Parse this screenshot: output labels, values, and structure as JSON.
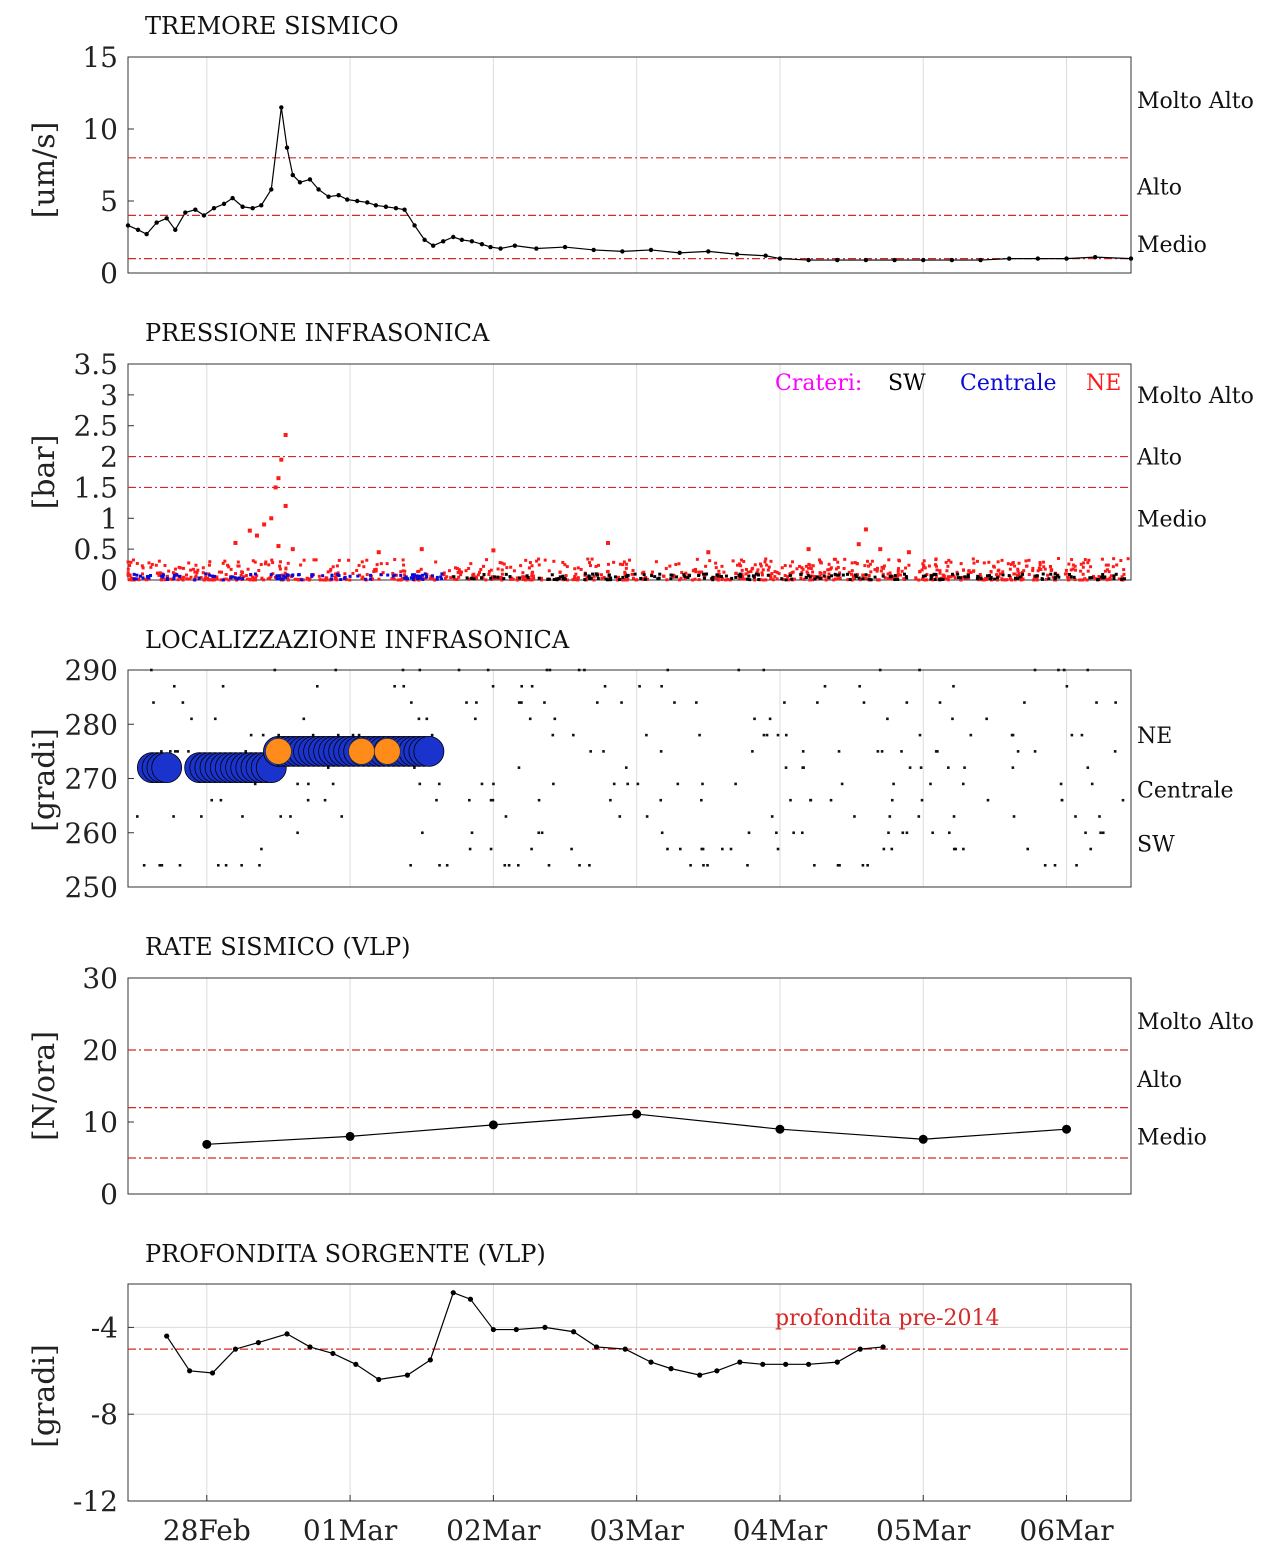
{
  "x_ticks": [
    "28Feb",
    "01Mar",
    "02Mar",
    "03Mar",
    "04Mar",
    "05Mar",
    "06Mar"
  ],
  "colors": {
    "threshold": "#d62828",
    "sw": "#000000",
    "centrale": "#0b0bd6",
    "ne": "#ff1a1a",
    "legend_label": "#ff00ff",
    "hit_orange": "#ff8c1a",
    "hit_blue": "#1a33cc"
  },
  "chart_data": [
    {
      "id": "tremore",
      "type": "line",
      "title": "TREMORE SISMICO",
      "ylabel": "[um/s]",
      "ylim": [
        0,
        15
      ],
      "yticks": [
        "0",
        "5",
        "10",
        "15"
      ],
      "x_unit": "days since 27Feb 00:00 (28Feb = 1)",
      "xlim": [
        0.45,
        7.45
      ],
      "levels": [
        {
          "label": "Molto Alto",
          "y": 12
        },
        {
          "label": "Alto",
          "y": 6
        },
        {
          "label": "Medio",
          "y": 2
        }
      ],
      "thresholds": [
        8,
        4,
        1
      ],
      "x": [
        0.45,
        0.52,
        0.58,
        0.65,
        0.72,
        0.78,
        0.85,
        0.92,
        0.98,
        1.05,
        1.12,
        1.18,
        1.25,
        1.32,
        1.38,
        1.45,
        1.52,
        1.56,
        1.6,
        1.65,
        1.72,
        1.78,
        1.85,
        1.92,
        1.98,
        2.05,
        2.12,
        2.18,
        2.25,
        2.32,
        2.38,
        2.45,
        2.52,
        2.58,
        2.65,
        2.72,
        2.78,
        2.85,
        2.92,
        2.98,
        3.05,
        3.15,
        3.3,
        3.5,
        3.7,
        3.9,
        4.1,
        4.3,
        4.5,
        4.7,
        4.9,
        5.0,
        5.2,
        5.4,
        5.6,
        5.8,
        6.0,
        6.2,
        6.4,
        6.6,
        6.8,
        7.0,
        7.2,
        7.45
      ],
      "values": [
        3.3,
        3.0,
        2.7,
        3.5,
        3.8,
        3.0,
        4.2,
        4.4,
        4.0,
        4.5,
        4.8,
        5.2,
        4.6,
        4.5,
        4.7,
        5.8,
        11.5,
        8.7,
        6.8,
        6.3,
        6.5,
        5.8,
        5.3,
        5.4,
        5.1,
        5.0,
        4.9,
        4.7,
        4.6,
        4.5,
        4.4,
        3.3,
        2.3,
        1.9,
        2.2,
        2.5,
        2.3,
        2.2,
        2.0,
        1.8,
        1.7,
        1.9,
        1.7,
        1.8,
        1.6,
        1.5,
        1.6,
        1.4,
        1.5,
        1.3,
        1.2,
        1.0,
        0.9,
        0.9,
        0.9,
        0.9,
        0.9,
        0.9,
        0.9,
        1.0,
        1.0,
        1.0,
        1.1,
        1.0
      ]
    },
    {
      "id": "pressione",
      "type": "scatter",
      "title": "PRESSIONE INFRASONICA",
      "ylabel": "[bar]",
      "ylim": [
        0,
        3.5
      ],
      "yticks": [
        "0",
        "0.5",
        "1",
        "1.5",
        "2",
        "2.5",
        "3",
        "3.5"
      ],
      "levels": [
        {
          "label": "Molto Alto",
          "y": 3.0
        },
        {
          "label": "Alto",
          "y": 2.0
        },
        {
          "label": "Medio",
          "y": 1.0
        }
      ],
      "thresholds": [
        2.0,
        1.5
      ],
      "legend": {
        "title": "Crateri:",
        "sw": "SW",
        "centrale": "Centrale",
        "ne": "NE",
        "placement": "top-right"
      },
      "series": [
        {
          "name": "NE",
          "points": [
            [
              1.55,
              2.35
            ],
            [
              1.52,
              1.95
            ],
            [
              1.5,
              1.65
            ],
            [
              1.48,
              1.5
            ],
            [
              1.55,
              1.2
            ],
            [
              1.45,
              1.0
            ],
            [
              1.4,
              0.9
            ],
            [
              1.3,
              0.8
            ],
            [
              1.35,
              0.72
            ],
            [
              1.5,
              0.55
            ],
            [
              1.2,
              0.6
            ],
            [
              1.6,
              0.5
            ],
            [
              2.2,
              0.45
            ],
            [
              2.5,
              0.5
            ],
            [
              3.0,
              0.48
            ],
            [
              3.8,
              0.6
            ],
            [
              4.5,
              0.45
            ],
            [
              5.2,
              0.5
            ],
            [
              5.55,
              0.58
            ],
            [
              5.6,
              0.82
            ],
            [
              5.7,
              0.5
            ],
            [
              5.9,
              0.45
            ]
          ]
        }
      ],
      "noise_band": {
        "ne_max": 0.35,
        "sw_centrale_max": 0.1
      }
    },
    {
      "id": "localizzazione",
      "type": "scatter",
      "title": "LOCALIZZAZIONE INFRASONICA",
      "ylabel": "[gradi]",
      "ylim": [
        250,
        290
      ],
      "yticks": [
        "250",
        "260",
        "270",
        "280",
        "290"
      ],
      "levels": [
        {
          "label": "NE",
          "y": 278
        },
        {
          "label": "Centrale",
          "y": 268
        },
        {
          "label": "SW",
          "y": 258
        }
      ],
      "clusters": [
        {
          "x_start": 0.62,
          "x_end": 0.72,
          "y": 272,
          "color": "blue"
        },
        {
          "x_start": 0.95,
          "x_end": 1.45,
          "y": 272,
          "color": "blue"
        },
        {
          "x_start": 1.5,
          "x_end": 2.55,
          "y": 275,
          "color": "blue"
        }
      ],
      "orange": [
        [
          1.5,
          275
        ],
        [
          2.08,
          275
        ],
        [
          2.26,
          275
        ]
      ]
    },
    {
      "id": "rate",
      "type": "line",
      "title": "RATE SISMICO (VLP)",
      "ylabel": "[N/ora]",
      "ylim": [
        0,
        30
      ],
      "yticks": [
        "0",
        "10",
        "20",
        "30"
      ],
      "levels": [
        {
          "label": "Molto Alto",
          "y": 24
        },
        {
          "label": "Alto",
          "y": 16
        },
        {
          "label": "Medio",
          "y": 8
        }
      ],
      "thresholds": [
        20,
        12,
        5
      ],
      "x": [
        1,
        2,
        3,
        4,
        5,
        6,
        7
      ],
      "values": [
        6.9,
        8.0,
        9.6,
        11.1,
        9.0,
        7.6,
        9.0
      ]
    },
    {
      "id": "profondita",
      "type": "line",
      "title": "PROFONDITA SORGENTE (VLP)",
      "ylabel": "[gradi]",
      "ylim": [
        -12,
        -2
      ],
      "yticks": [
        "-12",
        "-8",
        "-4"
      ],
      "threshold": -5,
      "threshold_label": "profondita pre-2014",
      "x": [
        0.72,
        0.88,
        1.04,
        1.2,
        1.36,
        1.56,
        1.72,
        1.88,
        2.04,
        2.2,
        2.4,
        2.56,
        2.72,
        2.84,
        3.0,
        3.16,
        3.36,
        3.56,
        3.72,
        3.92,
        4.1,
        4.24,
        4.44,
        4.56,
        4.72,
        4.88,
        5.04,
        5.2,
        5.4,
        5.56,
        5.72
      ],
      "values": [
        -4.4,
        -6.0,
        -6.1,
        -5.0,
        -4.7,
        -4.3,
        -4.9,
        -5.2,
        -5.7,
        -6.4,
        -6.2,
        -5.5,
        -2.4,
        -2.7,
        -4.1,
        -4.1,
        -4.0,
        -4.2,
        -4.9,
        -5.0,
        -5.6,
        -5.9,
        -6.2,
        -6.0,
        -5.6,
        -5.7,
        -5.7,
        -5.7,
        -5.6,
        -5.0,
        -4.9
      ]
    }
  ]
}
